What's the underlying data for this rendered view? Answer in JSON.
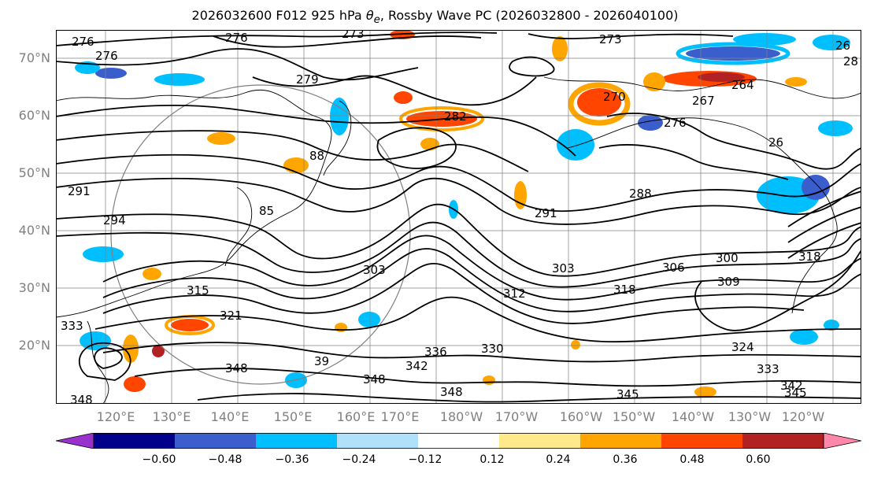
{
  "title": {
    "prefix": "2026032600 F012 925 hPa ",
    "theta_e": "θ",
    "theta_sub": "e",
    "suffix": ", Rossby Wave PC (2026032800 - 2026040100)"
  },
  "map": {
    "lat_labels": [
      "70°N",
      "60°N",
      "50°N",
      "40°N",
      "30°N",
      "20°N"
    ],
    "lon_labels": [
      "120°E",
      "130°E",
      "140°E",
      "150°E",
      "160°E",
      "170°E",
      "180°W",
      "170°W",
      "160°W",
      "150°W",
      "140°W",
      "130°W",
      "120°W"
    ],
    "contour_labels": [
      "273",
      "273",
      "276",
      "276",
      "276",
      "279",
      "282",
      "270",
      "267",
      "264",
      "276",
      "26",
      "26",
      "28",
      "88",
      "85",
      "294",
      "291",
      "291",
      "288",
      "300",
      "306",
      "303",
      "312",
      "318",
      "318",
      "315",
      "321",
      "333",
      "303",
      "309",
      "324",
      "333",
      "342",
      "345",
      "336",
      "330",
      "342",
      "345",
      "348",
      "348",
      "348",
      "39",
      "348"
    ],
    "colors": {
      "contour": "#000000",
      "coast": "#000000",
      "grid": "#808080"
    },
    "shading_colors": {
      "neg_060": "#9932cc",
      "neg_048": "#00008b",
      "neg_036": "#3a5fcd",
      "neg_024": "#00bfff",
      "neg_012": "#b0e0fa",
      "pos_012": "#ffe98a",
      "pos_024": "#ffa500",
      "pos_036": "#ff4500",
      "pos_048": "#b22222",
      "pos_060": "#ff88aa"
    }
  },
  "colorbar": {
    "ticks": [
      "−0.60",
      "−0.48",
      "−0.36",
      "−0.24",
      "−0.12",
      "0.12",
      "0.24",
      "0.36",
      "0.48",
      "0.60"
    ],
    "colors": [
      "#9932cc",
      "#00008b",
      "#3a5fcd",
      "#00bfff",
      "#b0e0fa",
      "#ffffff",
      "#ffe98a",
      "#ffa500",
      "#ff4500",
      "#b22222",
      "#ff88aa"
    ]
  }
}
